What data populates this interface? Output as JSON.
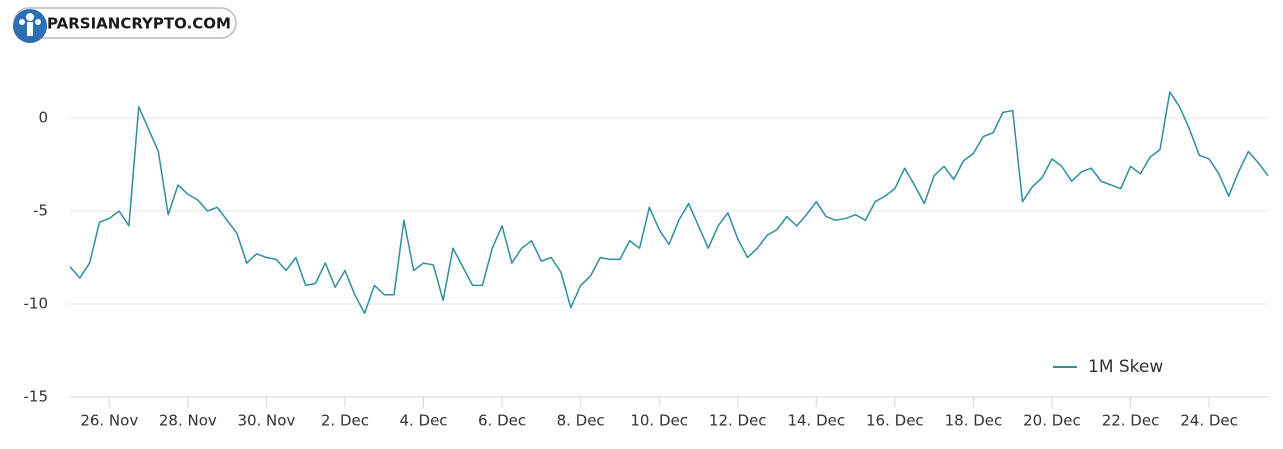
{
  "chart_data": {
    "type": "line",
    "annotation": "PARSIANCRYPTO.COM",
    "categories": [
      null,
      null,
      null,
      null,
      "26. Nov",
      null,
      null,
      null,
      null,
      null,
      null,
      null,
      "28. Nov",
      null,
      null,
      null,
      null,
      null,
      null,
      null,
      "30. Nov",
      null,
      null,
      null,
      null,
      null,
      null,
      null,
      "2. Dec",
      null,
      null,
      null,
      null,
      null,
      null,
      null,
      "4. Dec",
      null,
      null,
      null,
      null,
      null,
      null,
      null,
      "6. Dec",
      null,
      null,
      null,
      null,
      null,
      null,
      null,
      "8. Dec",
      null,
      null,
      null,
      null,
      null,
      null,
      null,
      "10. Dec",
      null,
      null,
      null,
      null,
      null,
      null,
      null,
      "12. Dec",
      null,
      null,
      null,
      null,
      null,
      null,
      null,
      "14. Dec",
      null,
      null,
      null,
      null,
      null,
      null,
      null,
      "16. Dec",
      null,
      null,
      null,
      null,
      null,
      null,
      null,
      "18. Dec",
      null,
      null,
      null,
      null,
      null,
      null,
      null,
      "20. Dec",
      null,
      null,
      null,
      null,
      null,
      null,
      null,
      "22. Dec",
      null,
      null,
      null,
      null,
      null,
      null,
      null,
      "24. Dec",
      null,
      null,
      null,
      null,
      null,
      null
    ],
    "series": [
      {
        "name": "1M Skew",
        "color": "#2f8f9d",
        "values": [
          -8.0,
          -8.6,
          -7.8,
          -5.6,
          -5.4,
          -5.0,
          -5.8,
          0.6,
          -0.6,
          -1.8,
          -5.2,
          -3.6,
          -4.1,
          -4.4,
          -5.0,
          -4.8,
          -5.5,
          -6.2,
          -7.8,
          -7.3,
          -7.5,
          -7.6,
          -8.2,
          -7.5,
          -9.0,
          -8.9,
          -7.8,
          -9.1,
          -8.2,
          -9.5,
          -10.5,
          -9.0,
          -9.5,
          -9.5,
          -5.5,
          -8.2,
          -7.8,
          -7.9,
          -9.8,
          -7.0,
          -8.0,
          -9.0,
          -9.0,
          -7.0,
          -5.8,
          -7.8,
          -7.0,
          -6.6,
          -7.7,
          -7.5,
          -8.3,
          -10.2,
          -9.0,
          -8.5,
          -7.5,
          -7.6,
          -7.6,
          -6.6,
          -7.0,
          -4.8,
          -6.0,
          -6.8,
          -5.5,
          -4.6,
          -5.8,
          -7.0,
          -5.8,
          -5.1,
          -6.5,
          -7.5,
          -7.0,
          -6.3,
          -6.0,
          -5.3,
          -5.8,
          -5.2,
          -4.5,
          -5.3,
          -5.5,
          -5.4,
          -5.2,
          -5.5,
          -4.5,
          -4.2,
          -3.8,
          -2.7,
          -3.6,
          -4.6,
          -3.1,
          -2.6,
          -3.3,
          -2.3,
          -1.9,
          -1.0,
          -0.8,
          0.3,
          0.4,
          -4.5,
          -3.7,
          -3.2,
          -2.2,
          -2.6,
          -3.4,
          -2.9,
          -2.7,
          -3.4,
          -3.6,
          -3.8,
          -2.6,
          -3.0,
          -2.1,
          -1.7,
          1.4,
          0.6,
          -0.6,
          -2.0,
          -2.2,
          -3.0,
          -4.2,
          -2.9,
          -1.8,
          -2.4,
          -3.1
        ]
      }
    ],
    "ylim": [
      -15,
      5
    ],
    "yticks": [
      -15,
      -10,
      -5,
      0
    ],
    "grid": true,
    "legend": "lower right"
  }
}
